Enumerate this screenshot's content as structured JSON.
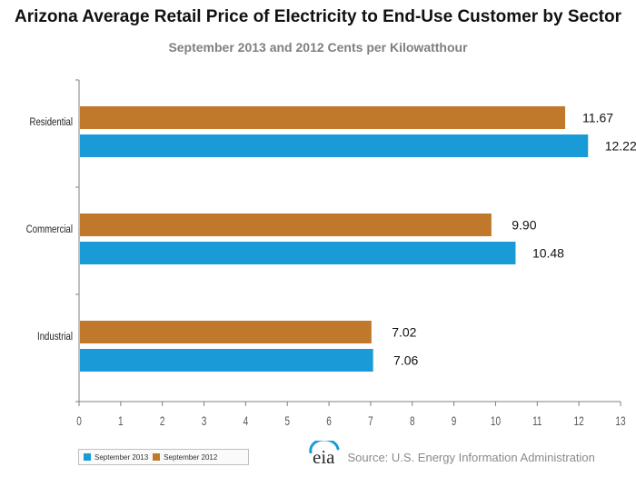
{
  "title": "Arizona Average Retail Price of Electricity to End-Use Customer by Sector",
  "subtitle": "September 2013 and 2012 Cents per Kilowatthour",
  "colors": {
    "sep2013": "#1a9bd7",
    "sep2012": "#c0782b",
    "axis": "#808080",
    "tick_label": "#595959"
  },
  "chart_data": {
    "type": "bar",
    "orientation": "horizontal",
    "categories": [
      "Residential",
      "Commercial",
      "Industrial"
    ],
    "series": [
      {
        "name": "September 2012",
        "values": [
          11.67,
          9.9,
          7.02
        ],
        "labels": [
          "11.67",
          "9.90",
          "7.02"
        ]
      },
      {
        "name": "September 2013",
        "values": [
          12.22,
          10.48,
          7.06
        ],
        "labels": [
          "12.22",
          "10.48",
          "7.06"
        ]
      }
    ],
    "xlim": [
      0,
      13
    ],
    "xticks": [
      "0",
      "1",
      "2",
      "3",
      "4",
      "5",
      "6",
      "7",
      "8",
      "9",
      "10",
      "11",
      "12",
      "13"
    ],
    "title": "Arizona Average Retail Price of Electricity to End-Use Customer by Sector",
    "subtitle": "September 2013 and 2012 Cents per Kilowatthour",
    "legend_position": "bottom-left"
  },
  "legend": {
    "items": [
      "September 2013",
      "September 2012"
    ]
  },
  "source": {
    "logo_text": "eia",
    "text": "Source: U.S. Energy Information Administration"
  }
}
